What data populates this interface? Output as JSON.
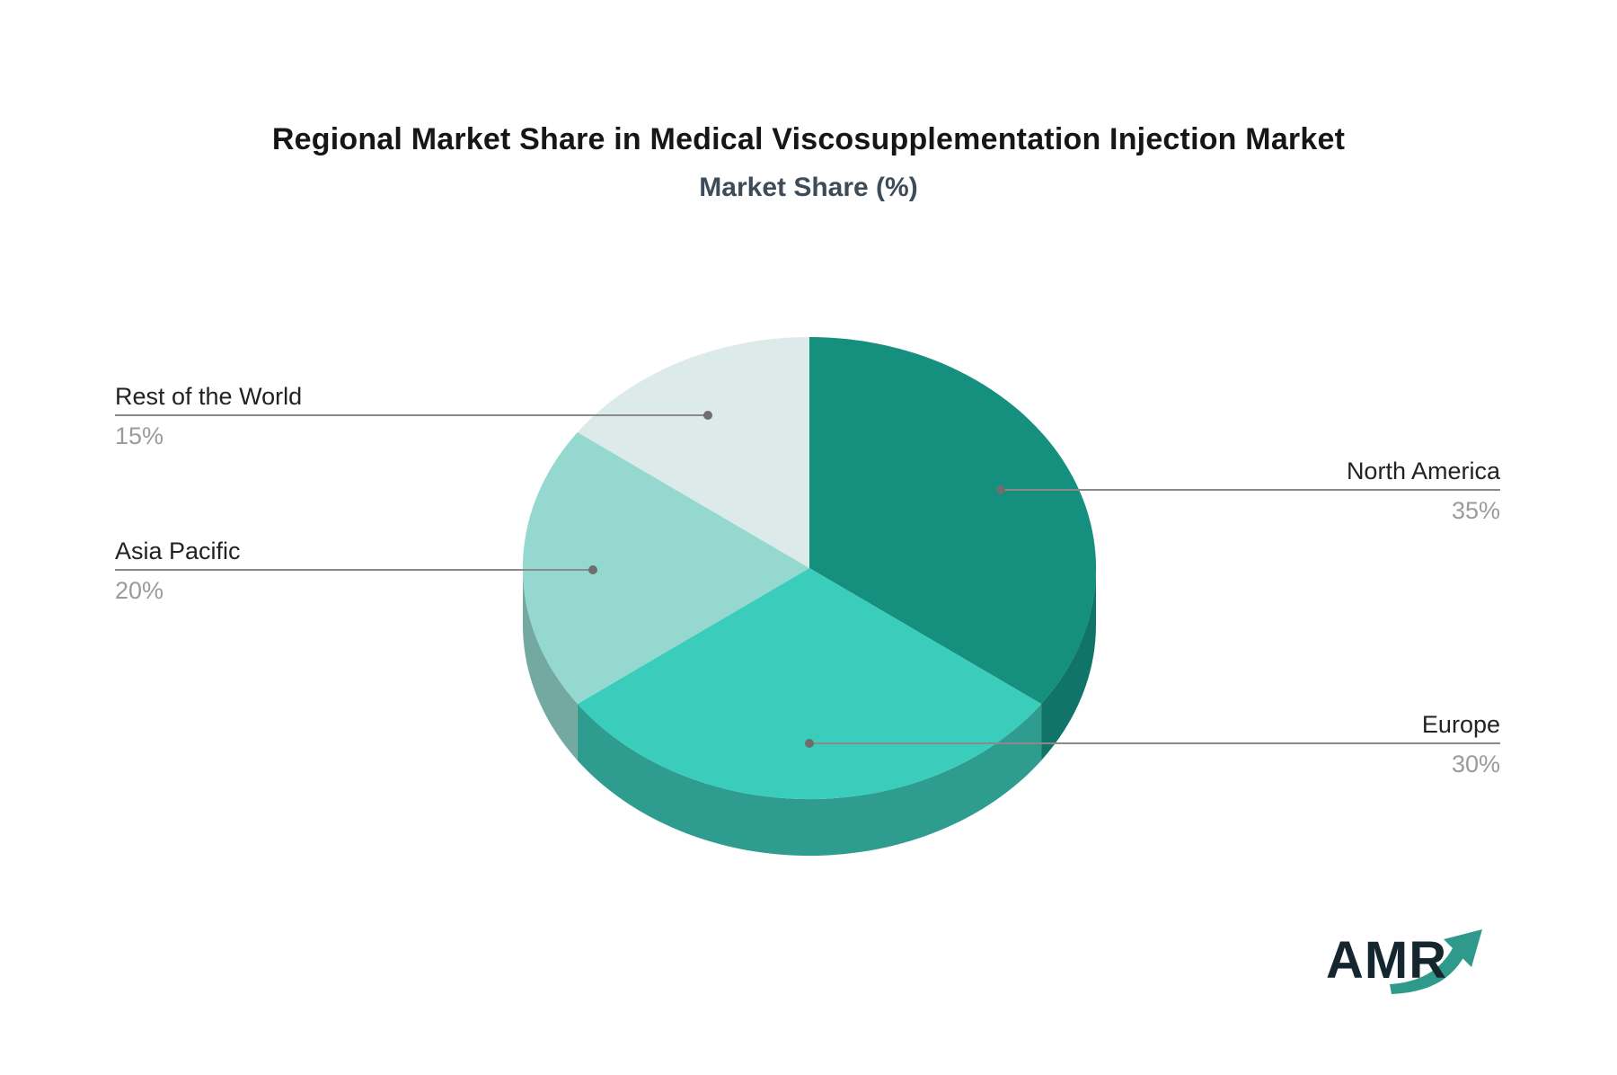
{
  "page": {
    "background": "#ffffff"
  },
  "header": {
    "title": "Regional Market Share in Medical Viscosupplementation Injection Market",
    "subtitle": "Market Share (%)"
  },
  "logo": {
    "text": "AMR",
    "text_color": "#16262F",
    "arrow_color": "#2F9A8B"
  },
  "styles": {
    "title_color": "#161616",
    "subtitle_color": "#3E4C59",
    "label_color": "#222222",
    "percent_color": "#9B9B9B",
    "leader_line_color": "#8A8A8A",
    "leader_dot_color": "#6E6E6E"
  },
  "chart_data": {
    "type": "pie",
    "style": "3d",
    "title": "Regional Market Share in Medical Viscosupplementation Injection Market",
    "subtitle": "Market Share (%)",
    "unit": "%",
    "start_angle_deg": 0,
    "direction": "clockwise",
    "legend_position": "leader-lines",
    "series": [
      {
        "label": "North America",
        "value": 35,
        "display": "35%",
        "color": "#16907E",
        "side_color": "#107568",
        "label_side": "right"
      },
      {
        "label": "Europe",
        "value": 30,
        "display": "30%",
        "color": "#3BCDBC",
        "side_color": "#2E9D90",
        "label_side": "right"
      },
      {
        "label": "Asia Pacific",
        "value": 20,
        "display": "20%",
        "color": "#94D8D0",
        "side_color": "#74A9A2",
        "label_side": "left"
      },
      {
        "label": "Rest of the World",
        "value": 15,
        "display": "15%",
        "color": "#DCEBE9",
        "label_side": "left"
      }
    ]
  }
}
